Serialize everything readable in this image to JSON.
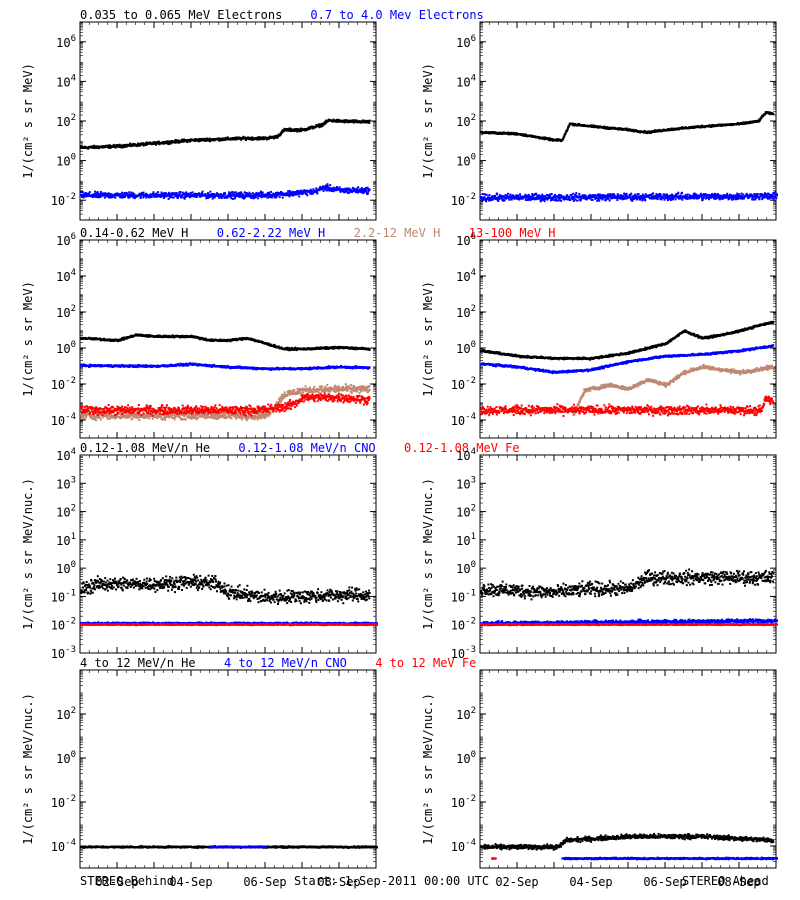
{
  "chart_data": [
    {
      "type": "scatter",
      "row": 0,
      "col": 0,
      "spacecraft": "STEREO Behind",
      "ylabel": "1/(cm² s sr MeV)",
      "log_y": true,
      "ylim_exp": [
        -3,
        7
      ],
      "ytick_exp": [
        -2,
        0,
        2,
        4,
        6
      ],
      "xlim_days": [
        0,
        8
      ],
      "series": [
        {
          "name": "0.035 to 0.065 MeV Electrons",
          "color": "#000000",
          "points": [
            [
              0,
              5
            ],
            [
              1,
              6
            ],
            [
              1.5,
              7
            ],
            [
              2.5,
              10
            ],
            [
              3,
              12
            ],
            [
              4,
              14
            ],
            [
              4.5,
              15
            ],
            [
              5,
              15
            ],
            [
              5.3,
              18
            ],
            [
              5.5,
              40
            ],
            [
              6,
              40
            ],
            [
              6.5,
              70
            ],
            [
              6.7,
              120
            ],
            [
              7,
              110
            ],
            [
              7.8,
              100
            ]
          ],
          "spread": 0.1
        },
        {
          "name": "0.7 to 4.0 Mev Electrons",
          "color": "#0000ff",
          "points": [
            [
              0,
              0.02
            ],
            [
              5,
              0.02
            ],
            [
              6.3,
              0.03
            ],
            [
              6.6,
              0.05
            ],
            [
              7,
              0.035
            ],
            [
              7.8,
              0.035
            ]
          ],
          "spread": 0.22
        }
      ]
    },
    {
      "type": "scatter",
      "row": 0,
      "col": 1,
      "spacecraft": "STEREO Ahead",
      "ylabel": "1/(cm² s sr MeV)",
      "log_y": true,
      "ylim_exp": [
        -3,
        7
      ],
      "ytick_exp": [
        -2,
        0,
        2,
        4,
        6
      ],
      "xlim_days": [
        0,
        8
      ],
      "series": [
        {
          "name": "0.035 to 0.065 MeV Electrons",
          "color": "#000000",
          "points": [
            [
              0,
              30
            ],
            [
              1,
              25
            ],
            [
              2,
              12
            ],
            [
              2.2,
              12
            ],
            [
              2.4,
              80
            ],
            [
              3,
              60
            ],
            [
              4,
              40
            ],
            [
              4.5,
              30
            ],
            [
              5,
              40
            ],
            [
              6,
              60
            ],
            [
              7,
              80
            ],
            [
              7.5,
              110
            ],
            [
              7.7,
              300
            ],
            [
              7.9,
              250
            ]
          ],
          "spread": 0.07
        },
        {
          "name": "0.7 to 4.0 Mev Electrons",
          "color": "#0000ff",
          "points": [
            [
              0,
              0.015
            ],
            [
              8,
              0.018
            ]
          ],
          "spread": 0.25
        }
      ]
    },
    {
      "type": "scatter",
      "row": 1,
      "col": 0,
      "spacecraft": "STEREO Behind",
      "ylabel": "1/(cm² s sr MeV)",
      "log_y": true,
      "ylim_exp": [
        -5,
        6
      ],
      "ytick_exp": [
        -4,
        -2,
        0,
        2,
        4,
        6
      ],
      "xlim_days": [
        0,
        8
      ],
      "series": [
        {
          "name": "0.14-0.62 MeV H",
          "color": "#000000",
          "points": [
            [
              0,
              4
            ],
            [
              1,
              3
            ],
            [
              1.5,
              6
            ],
            [
              2,
              5
            ],
            [
              3,
              5
            ],
            [
              3.5,
              3
            ],
            [
              4,
              3
            ],
            [
              4.5,
              4
            ],
            [
              5,
              2
            ],
            [
              5.5,
              1
            ],
            [
              6,
              1
            ],
            [
              7,
              1.2
            ],
            [
              7.8,
              1
            ]
          ],
          "spread": 0.08
        },
        {
          "name": "0.62-2.22 MeV H",
          "color": "#0000ff",
          "points": [
            [
              0,
              0.12
            ],
            [
              2,
              0.11
            ],
            [
              3,
              0.14
            ],
            [
              4,
              0.1
            ],
            [
              5,
              0.08
            ],
            [
              6,
              0.08
            ],
            [
              7,
              0.1
            ],
            [
              7.8,
              0.09
            ]
          ],
          "spread": 0.08
        },
        {
          "name": "2.2-12 MeV H",
          "color": "#c08870",
          "points": [
            [
              0,
              0.0002
            ],
            [
              4.8,
              0.0002
            ],
            [
              5,
              0.0002
            ],
            [
              5.2,
              0.0005
            ],
            [
              5.5,
              0.003
            ],
            [
              6,
              0.005
            ],
            [
              7,
              0.006
            ],
            [
              7.8,
              0.006
            ]
          ],
          "spread": 0.3
        },
        {
          "name": "13-100 MeV H",
          "color": "#ff0000",
          "points": [
            [
              0,
              0.0004
            ],
            [
              4.8,
              0.0004
            ],
            [
              5.5,
              0.0006
            ],
            [
              5.8,
              0.001
            ],
            [
              6,
              0.002
            ],
            [
              7,
              0.002
            ],
            [
              7.8,
              0.0015
            ]
          ],
          "spread": 0.35
        }
      ]
    },
    {
      "type": "scatter",
      "row": 1,
      "col": 1,
      "spacecraft": "STEREO Ahead",
      "ylabel": "1/(cm² s sr MeV)",
      "log_y": true,
      "ylim_exp": [
        -5,
        6
      ],
      "ytick_exp": [
        -4,
        -2,
        0,
        2,
        4,
        6
      ],
      "xlim_days": [
        0,
        8
      ],
      "series": [
        {
          "name": "0.14-0.62 MeV H",
          "color": "#000000",
          "points": [
            [
              0,
              0.8
            ],
            [
              1,
              0.4
            ],
            [
              2,
              0.3
            ],
            [
              3,
              0.3
            ],
            [
              4,
              0.6
            ],
            [
              5,
              2
            ],
            [
              5.5,
              10
            ],
            [
              6,
              4
            ],
            [
              6.5,
              6
            ],
            [
              7,
              10
            ],
            [
              7.5,
              20
            ],
            [
              7.9,
              30
            ]
          ],
          "spread": 0.08
        },
        {
          "name": "0.62-2.22 MeV H",
          "color": "#0000ff",
          "points": [
            [
              0,
              0.15
            ],
            [
              1,
              0.1
            ],
            [
              2,
              0.05
            ],
            [
              3,
              0.07
            ],
            [
              4,
              0.2
            ],
            [
              5,
              0.4
            ],
            [
              6,
              0.5
            ],
            [
              7,
              0.8
            ],
            [
              7.9,
              1.5
            ]
          ],
          "spread": 0.08
        },
        {
          "name": "2.2-12 MeV H",
          "color": "#c08870",
          "points": [
            [
              2.5,
              0.0002
            ],
            [
              2.8,
              0.005
            ],
            [
              3.5,
              0.01
            ],
            [
              4,
              0.006
            ],
            [
              4.5,
              0.02
            ],
            [
              5,
              0.01
            ],
            [
              5.5,
              0.05
            ],
            [
              6,
              0.1
            ],
            [
              7,
              0.05
            ],
            [
              7.9,
              0.1
            ]
          ],
          "spread": 0.15
        },
        {
          "name": "13-100 MeV H",
          "color": "#ff0000",
          "points": [
            [
              0,
              0.0004
            ],
            [
              7.6,
              0.0004
            ],
            [
              7.7,
              0.002
            ],
            [
              7.9,
              0.001
            ]
          ],
          "spread": 0.35
        }
      ]
    },
    {
      "type": "scatter",
      "row": 2,
      "col": 0,
      "spacecraft": "STEREO Behind",
      "ylabel": "1/(cm² s sr MeV/nuc.)",
      "log_y": true,
      "ylim_exp": [
        -3,
        4
      ],
      "ytick_exp": [
        -3,
        -2,
        -1,
        0,
        1,
        2,
        3,
        4
      ],
      "xlim_days": [
        0,
        8
      ],
      "series": [
        {
          "name": "0.12-1.08 MeV/n He",
          "color": "#000000",
          "points": [
            [
              0,
              0.2
            ],
            [
              0.5,
              0.3
            ],
            [
              2,
              0.3
            ],
            [
              3,
              0.35
            ],
            [
              3.7,
              0.3
            ],
            [
              4,
              0.15
            ],
            [
              5,
              0.1
            ],
            [
              7,
              0.12
            ],
            [
              7.8,
              0.12
            ]
          ],
          "spread": 0.35
        },
        {
          "name": "0.12-1.08 MeV/n CNO",
          "color": "#0000ff",
          "points": [
            [
              0,
              0.012
            ],
            [
              8,
              0.012
            ]
          ],
          "spread": 0.05
        },
        {
          "name": "0.12-1.08 MeV Fe",
          "color": "#ff0000",
          "points": [
            [
              0,
              0.011
            ],
            [
              8,
              0.011
            ]
          ],
          "spread": 0.03
        }
      ]
    },
    {
      "type": "scatter",
      "row": 2,
      "col": 1,
      "spacecraft": "STEREO Ahead",
      "ylabel": "1/(cm² s sr MeV/nuc.)",
      "log_y": true,
      "ylim_exp": [
        -3,
        4
      ],
      "ytick_exp": [
        -3,
        -2,
        -1,
        0,
        1,
        2,
        3,
        4
      ],
      "xlim_days": [
        0,
        8
      ],
      "series": [
        {
          "name": "0.12-1.08 MeV/n He",
          "color": "#000000",
          "points": [
            [
              0,
              0.2
            ],
            [
              2,
              0.15
            ],
            [
              3,
              0.2
            ],
            [
              4,
              0.2
            ],
            [
              4.5,
              0.5
            ],
            [
              5,
              0.5
            ],
            [
              6,
              0.5
            ],
            [
              7,
              0.5
            ],
            [
              7.9,
              0.5
            ]
          ],
          "spread": 0.35
        },
        {
          "name": "0.12-1.08 MeV/n CNO",
          "color": "#0000ff",
          "points": [
            [
              0,
              0.012
            ],
            [
              8,
              0.015
            ]
          ],
          "spread": 0.1
        },
        {
          "name": "0.12-1.08 MeV Fe",
          "color": "#ff0000",
          "points": [
            [
              0,
              0.011
            ],
            [
              8,
              0.011
            ]
          ],
          "spread": 0.03
        }
      ]
    },
    {
      "type": "scatter",
      "row": 3,
      "col": 0,
      "spacecraft": "STEREO Behind",
      "ylabel": "1/(cm² s sr MeV/nuc.)",
      "log_y": true,
      "ylim_exp": [
        -5,
        4
      ],
      "ytick_exp": [
        -4,
        -2,
        0,
        2
      ],
      "xlim_days": [
        0,
        8
      ],
      "series": [
        {
          "name": "4 to 12 MeV/n He",
          "color": "#000000",
          "points": [
            [
              0,
              0.0001
            ],
            [
              8,
              0.0001
            ]
          ],
          "spread": 0.05
        },
        {
          "name": "4 to 12 MeV/n CNO",
          "color": "#0000ff",
          "points": [
            [
              3.5,
              0.0001
            ],
            [
              5,
              0.0001
            ]
          ],
          "spread": 0.02
        },
        {
          "name": "4 to 12 MeV Fe",
          "color": "#ff0000",
          "points": [],
          "spread": 0
        }
      ]
    },
    {
      "type": "scatter",
      "row": 3,
      "col": 1,
      "spacecraft": "STEREO Ahead",
      "ylabel": "1/(cm² s sr MeV/nuc.)",
      "log_y": true,
      "ylim_exp": [
        -5,
        4
      ],
      "ytick_exp": [
        -4,
        -2,
        0,
        2
      ],
      "xlim_days": [
        0,
        8
      ],
      "series": [
        {
          "name": "4 to 12 MeV/n He",
          "color": "#000000",
          "points": [
            [
              0,
              0.0001
            ],
            [
              2.1,
              0.0001
            ],
            [
              2.3,
              0.0002
            ],
            [
              4,
              0.0003
            ],
            [
              6,
              0.0003
            ],
            [
              7.9,
              0.0002
            ]
          ],
          "spread": 0.15
        },
        {
          "name": "4 to 12 MeV/n CNO",
          "color": "#0000ff",
          "points": [
            [
              2.2,
              3e-05
            ],
            [
              8,
              3e-05
            ]
          ],
          "spread": 0.05
        },
        {
          "name": "4 to 12 MeV Fe",
          "color": "#ff0000",
          "points": [
            [
              0.3,
              3e-05
            ],
            [
              0.4,
              3e-05
            ]
          ],
          "spread": 0.02
        }
      ]
    }
  ],
  "legend_rows": [
    {
      "items": [
        {
          "text": "0.035 to 0.065 MeV Electrons",
          "color": "#000000"
        },
        {
          "text": "0.7 to 4.0 Mev Electrons",
          "color": "#0000ff"
        }
      ]
    },
    {
      "items": [
        {
          "text": "0.14-0.62 MeV H",
          "color": "#000000"
        },
        {
          "text": "0.62-2.22 MeV H",
          "color": "#0000ff"
        },
        {
          "text": "2.2-12 MeV H",
          "color": "#c08870"
        },
        {
          "text": "13-100 MeV H",
          "color": "#ff0000"
        }
      ]
    },
    {
      "items": [
        {
          "text": "0.12-1.08 MeV/n He",
          "color": "#000000"
        },
        {
          "text": "0.12-1.08 MeV/n CNO",
          "color": "#0000ff"
        },
        {
          "text": "0.12-1.08 MeV Fe",
          "color": "#ff0000"
        }
      ]
    },
    {
      "items": [
        {
          "text": "4 to 12 MeV/n He",
          "color": "#000000"
        },
        {
          "text": "4 to 12 MeV/n CNO",
          "color": "#0000ff"
        },
        {
          "text": "4 to 12 MeV Fe",
          "color": "#ff0000"
        }
      ]
    }
  ],
  "x_ticks": [
    {
      "day": 1,
      "label": "02-Sep"
    },
    {
      "day": 3,
      "label": "04-Sep"
    },
    {
      "day": 5,
      "label": "06-Sep"
    },
    {
      "day": 7,
      "label": "08-Sep"
    }
  ],
  "footer": {
    "left": "STEREO Behind",
    "center": "Start:  1-Sep-2011 00:00 UTC",
    "right": "STEREO Ahead"
  }
}
